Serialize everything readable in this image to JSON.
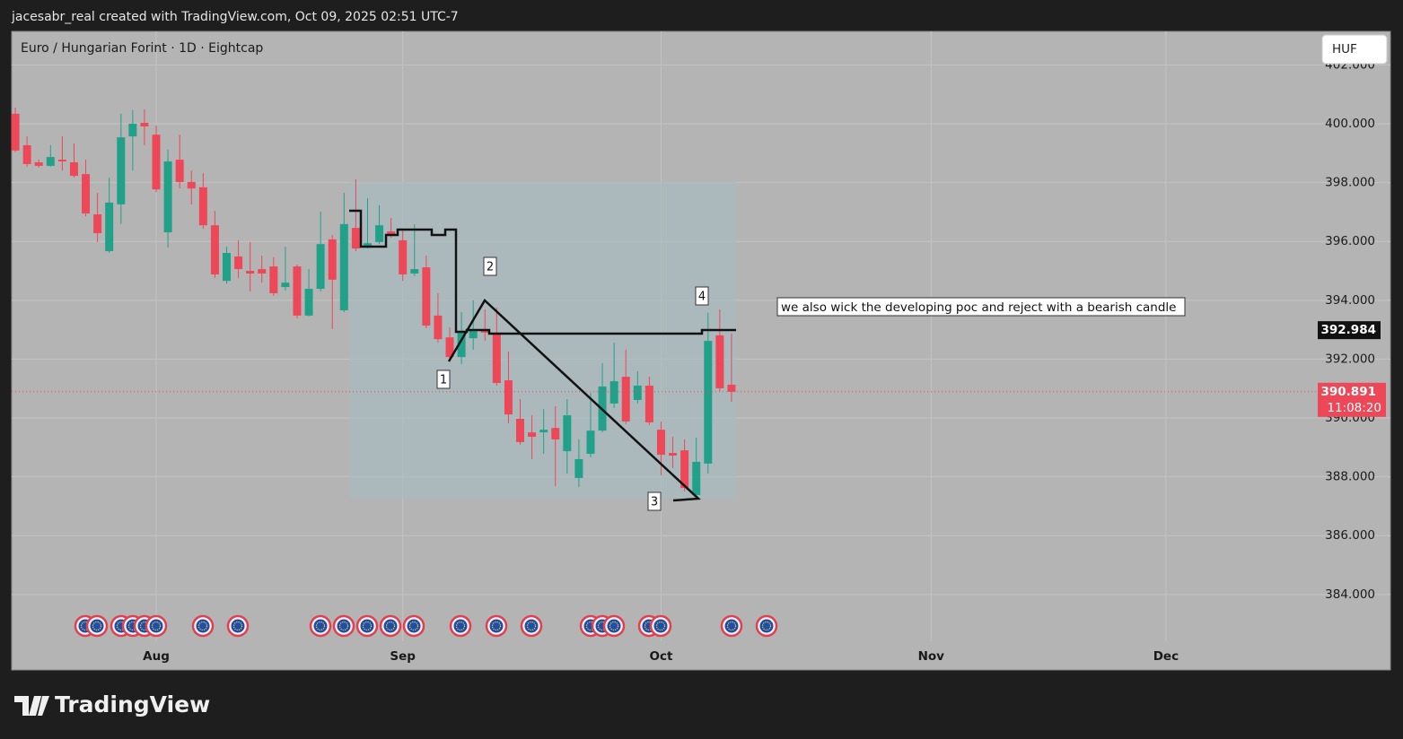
{
  "header": "jacesabr_real created with TradingView.com, Oct 09, 2025 02:51 UTC-7",
  "chart_data": {
    "type": "candlestick",
    "title": "Euro / Hungarian Forint · 1D · Eightcap",
    "currency": "HUF",
    "up_color": "#22a18a",
    "down_color": "#ee4757",
    "grid": true,
    "x": [
      -12,
      -11,
      -10,
      -9,
      -8,
      -7,
      -6,
      -5,
      -4,
      -3,
      -2,
      -1,
      0,
      1,
      2,
      3,
      4,
      5,
      6,
      7,
      8,
      9,
      10,
      11,
      12,
      13,
      14,
      15,
      16,
      17,
      18,
      19,
      20,
      21,
      22,
      23,
      24,
      25,
      26,
      27,
      28,
      29,
      30,
      31,
      32,
      33,
      34,
      35,
      36,
      37,
      38,
      39,
      40,
      41,
      42,
      43,
      44,
      45,
      46,
      47,
      48,
      49
    ],
    "open": [
      400.34,
      399.27,
      398.69,
      398.57,
      398.78,
      398.69,
      398.29,
      396.92,
      395.67,
      397.26,
      399.57,
      400.03,
      399.63,
      396.31,
      398.78,
      398.02,
      397.84,
      396.55,
      394.66,
      395.49,
      395.0,
      395.06,
      395.15,
      394.45,
      395.15,
      393.48,
      394.39,
      396.07,
      393.66,
      396.46,
      395.79,
      395.98,
      396.34,
      396.04,
      394.91,
      395.12,
      393.48,
      392.74,
      392.07,
      392.71,
      392.99,
      392.87,
      391.28,
      389.97,
      389.51,
      389.51,
      389.66,
      388.87,
      387.96,
      388.78,
      389.57,
      390.49,
      391.4,
      390.61,
      391.1,
      389.6,
      388.81,
      388.9,
      387.38,
      388.45,
      392.81,
      391.13
    ],
    "high": [
      400.55,
      399.57,
      398.78,
      399.27,
      399.57,
      399.33,
      398.78,
      397.65,
      398.17,
      400.34,
      400.46,
      400.49,
      399.94,
      399.12,
      399.63,
      398.41,
      398.32,
      397.04,
      395.82,
      396.04,
      395.98,
      395.52,
      395.46,
      395.82,
      395.21,
      395.06,
      397.01,
      396.22,
      397.65,
      398.11,
      397.47,
      397.23,
      396.8,
      396.43,
      396.59,
      395.52,
      394.24,
      393.08,
      393.6,
      394.0,
      393.69,
      393.75,
      392.26,
      390.64,
      390.09,
      390.3,
      390.4,
      390.64,
      389.27,
      390.85,
      391.86,
      392.56,
      392.32,
      391.59,
      391.4,
      389.88,
      389.36,
      389.27,
      389.33,
      393.57,
      393.69,
      392.87
    ],
    "low": [
      399.03,
      398.54,
      398.51,
      398.54,
      398.41,
      398.17,
      396.86,
      395.98,
      395.61,
      396.59,
      398.41,
      399.27,
      397.68,
      395.79,
      397.8,
      397.26,
      396.43,
      394.76,
      394.57,
      394.76,
      394.3,
      394.6,
      394.15,
      394.33,
      393.38,
      393.45,
      394.3,
      393.02,
      393.6,
      395.67,
      395.76,
      395.91,
      396.13,
      394.66,
      394.82,
      393.05,
      392.56,
      392.01,
      391.83,
      392.32,
      392.62,
      391.1,
      389.82,
      389.09,
      388.6,
      388.78,
      387.68,
      388.11,
      387.65,
      388.66,
      389.51,
      390.34,
      389.79,
      390.49,
      389.76,
      388.05,
      388.29,
      387.5,
      387.29,
      388.11,
      390.91,
      390.55
    ],
    "close": [
      399.09,
      398.63,
      398.57,
      398.87,
      398.72,
      398.23,
      396.95,
      396.28,
      397.32,
      399.54,
      400.0,
      399.91,
      397.77,
      398.72,
      398.02,
      397.8,
      396.55,
      394.88,
      395.61,
      395.06,
      394.91,
      394.91,
      394.24,
      394.6,
      393.48,
      394.39,
      395.91,
      394.7,
      396.59,
      395.76,
      395.94,
      396.55,
      396.19,
      394.88,
      395.06,
      393.14,
      392.68,
      392.07,
      392.93,
      393.02,
      392.9,
      391.19,
      390.12,
      389.18,
      389.36,
      389.6,
      389.27,
      390.09,
      388.6,
      389.57,
      391.07,
      391.25,
      389.88,
      391.1,
      389.85,
      388.75,
      388.72,
      387.62,
      388.51,
      392.62,
      391.01,
      390.89
    ],
    "xlim": [
      -12.31,
      105.12
    ],
    "xticks": [
      {
        "value": 0,
        "label": "Aug"
      },
      {
        "value": 21,
        "label": "Sep"
      },
      {
        "value": 43,
        "label": "Oct"
      },
      {
        "value": 66,
        "label": "Nov"
      },
      {
        "value": 86,
        "label": "Dec"
      }
    ],
    "ylim": [
      382.41,
      403.14
    ],
    "yticks": [
      {
        "value": 384,
        "label": "384.000"
      },
      {
        "value": 386,
        "label": "386.000"
      },
      {
        "value": 388,
        "label": "388.000"
      },
      {
        "value": 390,
        "label": "390.000"
      },
      {
        "value": 392,
        "label": "392.000"
      },
      {
        "value": 394,
        "label": "394.000"
      },
      {
        "value": 396,
        "label": "396.000"
      },
      {
        "value": 398,
        "label": "398.000"
      },
      {
        "value": 400,
        "label": "400.000"
      },
      {
        "value": 402,
        "label": "402.000"
      }
    ],
    "poc_price": 392.984,
    "last_price": 390.891,
    "countdown": "11:08:20",
    "annotations": [
      "1",
      "2",
      "3",
      "4"
    ],
    "note": "we also wick the developing poc and reject with a bearish candle"
  },
  "footer": {
    "brand": "TradingView"
  }
}
